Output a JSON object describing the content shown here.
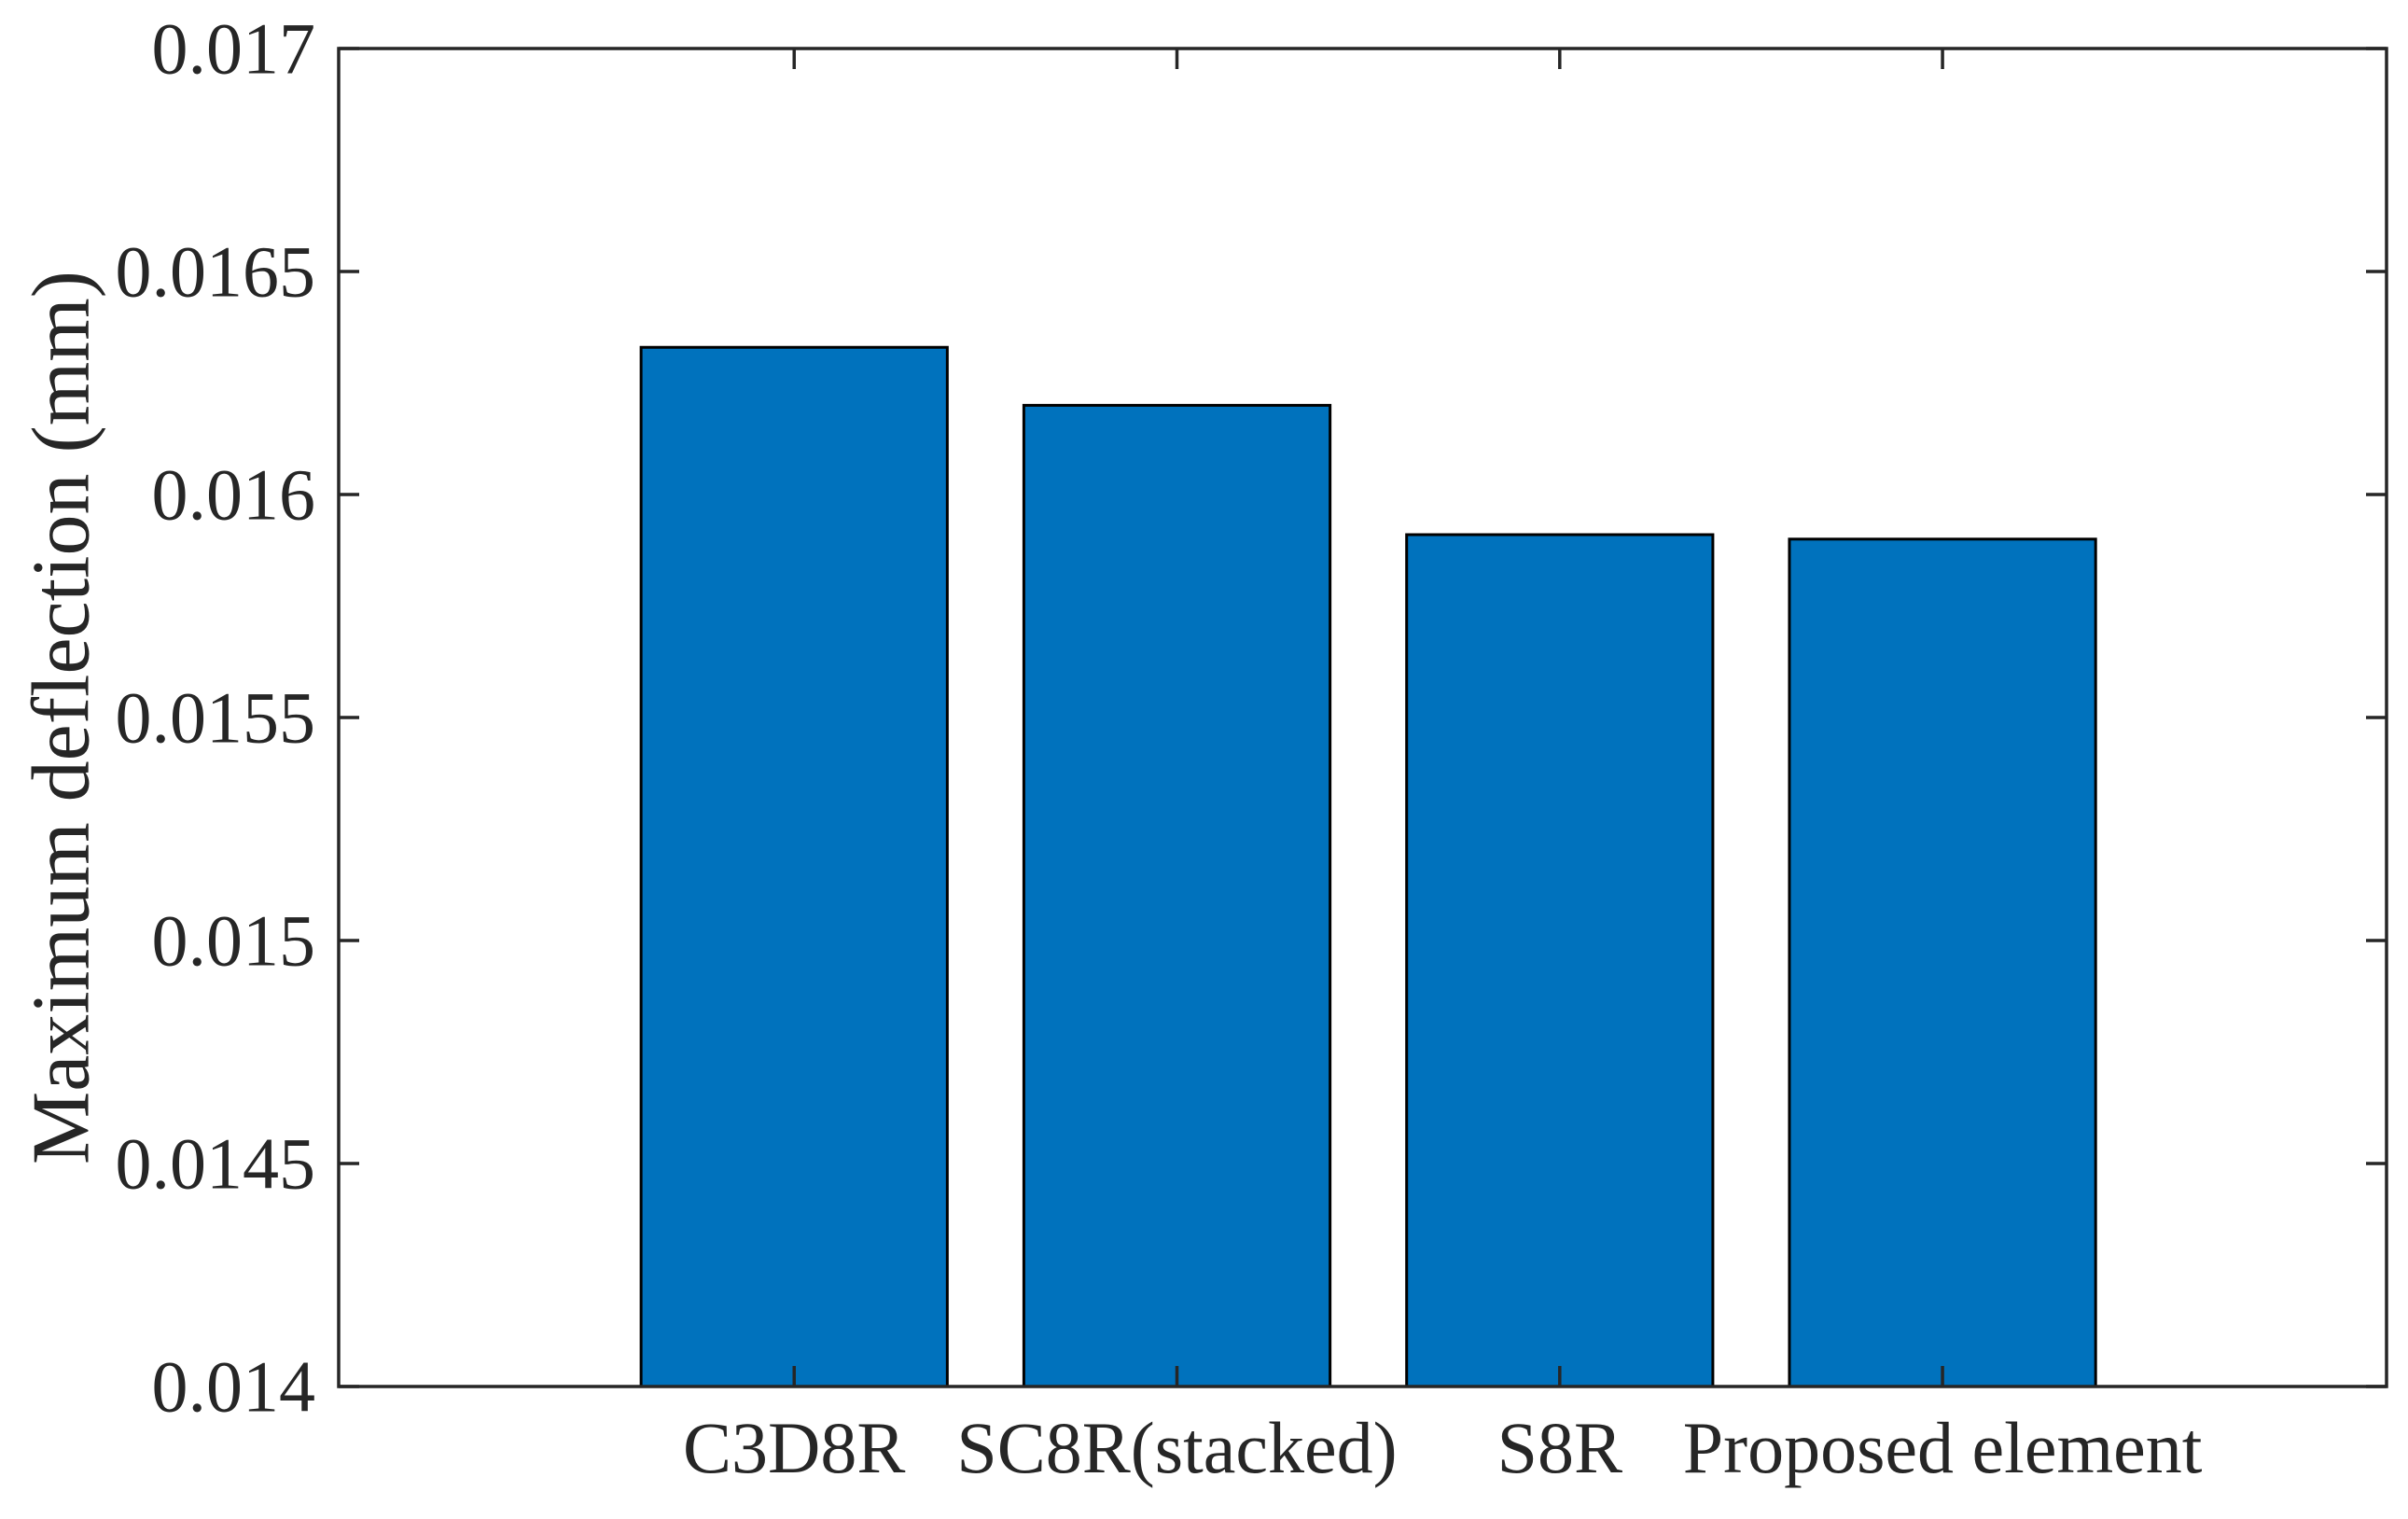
{
  "figure": {
    "background": "#ffffff"
  },
  "chart_data": {
    "type": "bar",
    "title": "",
    "xlabel": "",
    "ylabel": "Maximum deflection (mm)",
    "categories": [
      "C3D8R",
      "SC8R(stacked)",
      "S8R",
      "Proposed element"
    ],
    "values": [
      0.01633,
      0.0162,
      0.01591,
      0.0159
    ],
    "ylim": [
      0.014,
      0.017
    ],
    "ytick_values": [
      0.014,
      0.0145,
      0.015,
      0.0155,
      0.016,
      0.0165,
      0.017
    ],
    "ytick_labels": [
      "0.014",
      "0.0145",
      "0.015",
      "0.0155",
      "0.016",
      "0.0165",
      "0.017"
    ],
    "x_range": [
      -0.19,
      5.16
    ],
    "bar_width": 0.8,
    "bar_color": "#0072BD",
    "bar_edge_color": "#000000",
    "axis_color": "#262626",
    "text_color": "#262626",
    "grid": false,
    "legend": "none",
    "box": true,
    "tick_direction": "in"
  }
}
